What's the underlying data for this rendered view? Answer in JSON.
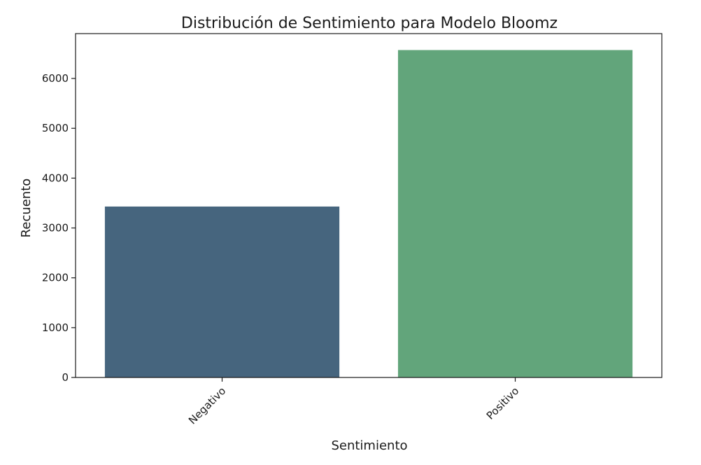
{
  "chart_data": {
    "type": "bar",
    "title": "Distribución de Sentimiento para Modelo Bloomz",
    "xlabel": "Sentimiento",
    "ylabel": "Recuento",
    "categories": [
      "Negativo",
      "Positivo"
    ],
    "values": [
      3430,
      6570
    ],
    "colors": [
      "#46657e",
      "#62a57b"
    ],
    "ylim": [
      0,
      6900
    ],
    "yticks": [
      0,
      1000,
      2000,
      3000,
      4000,
      5000,
      6000
    ],
    "ytick_labels": [
      "0",
      "1000",
      "2000",
      "3000",
      "4000",
      "5000",
      "6000"
    ],
    "xtick_rotation": "45 degrees",
    "grid": false,
    "legend": "none"
  }
}
